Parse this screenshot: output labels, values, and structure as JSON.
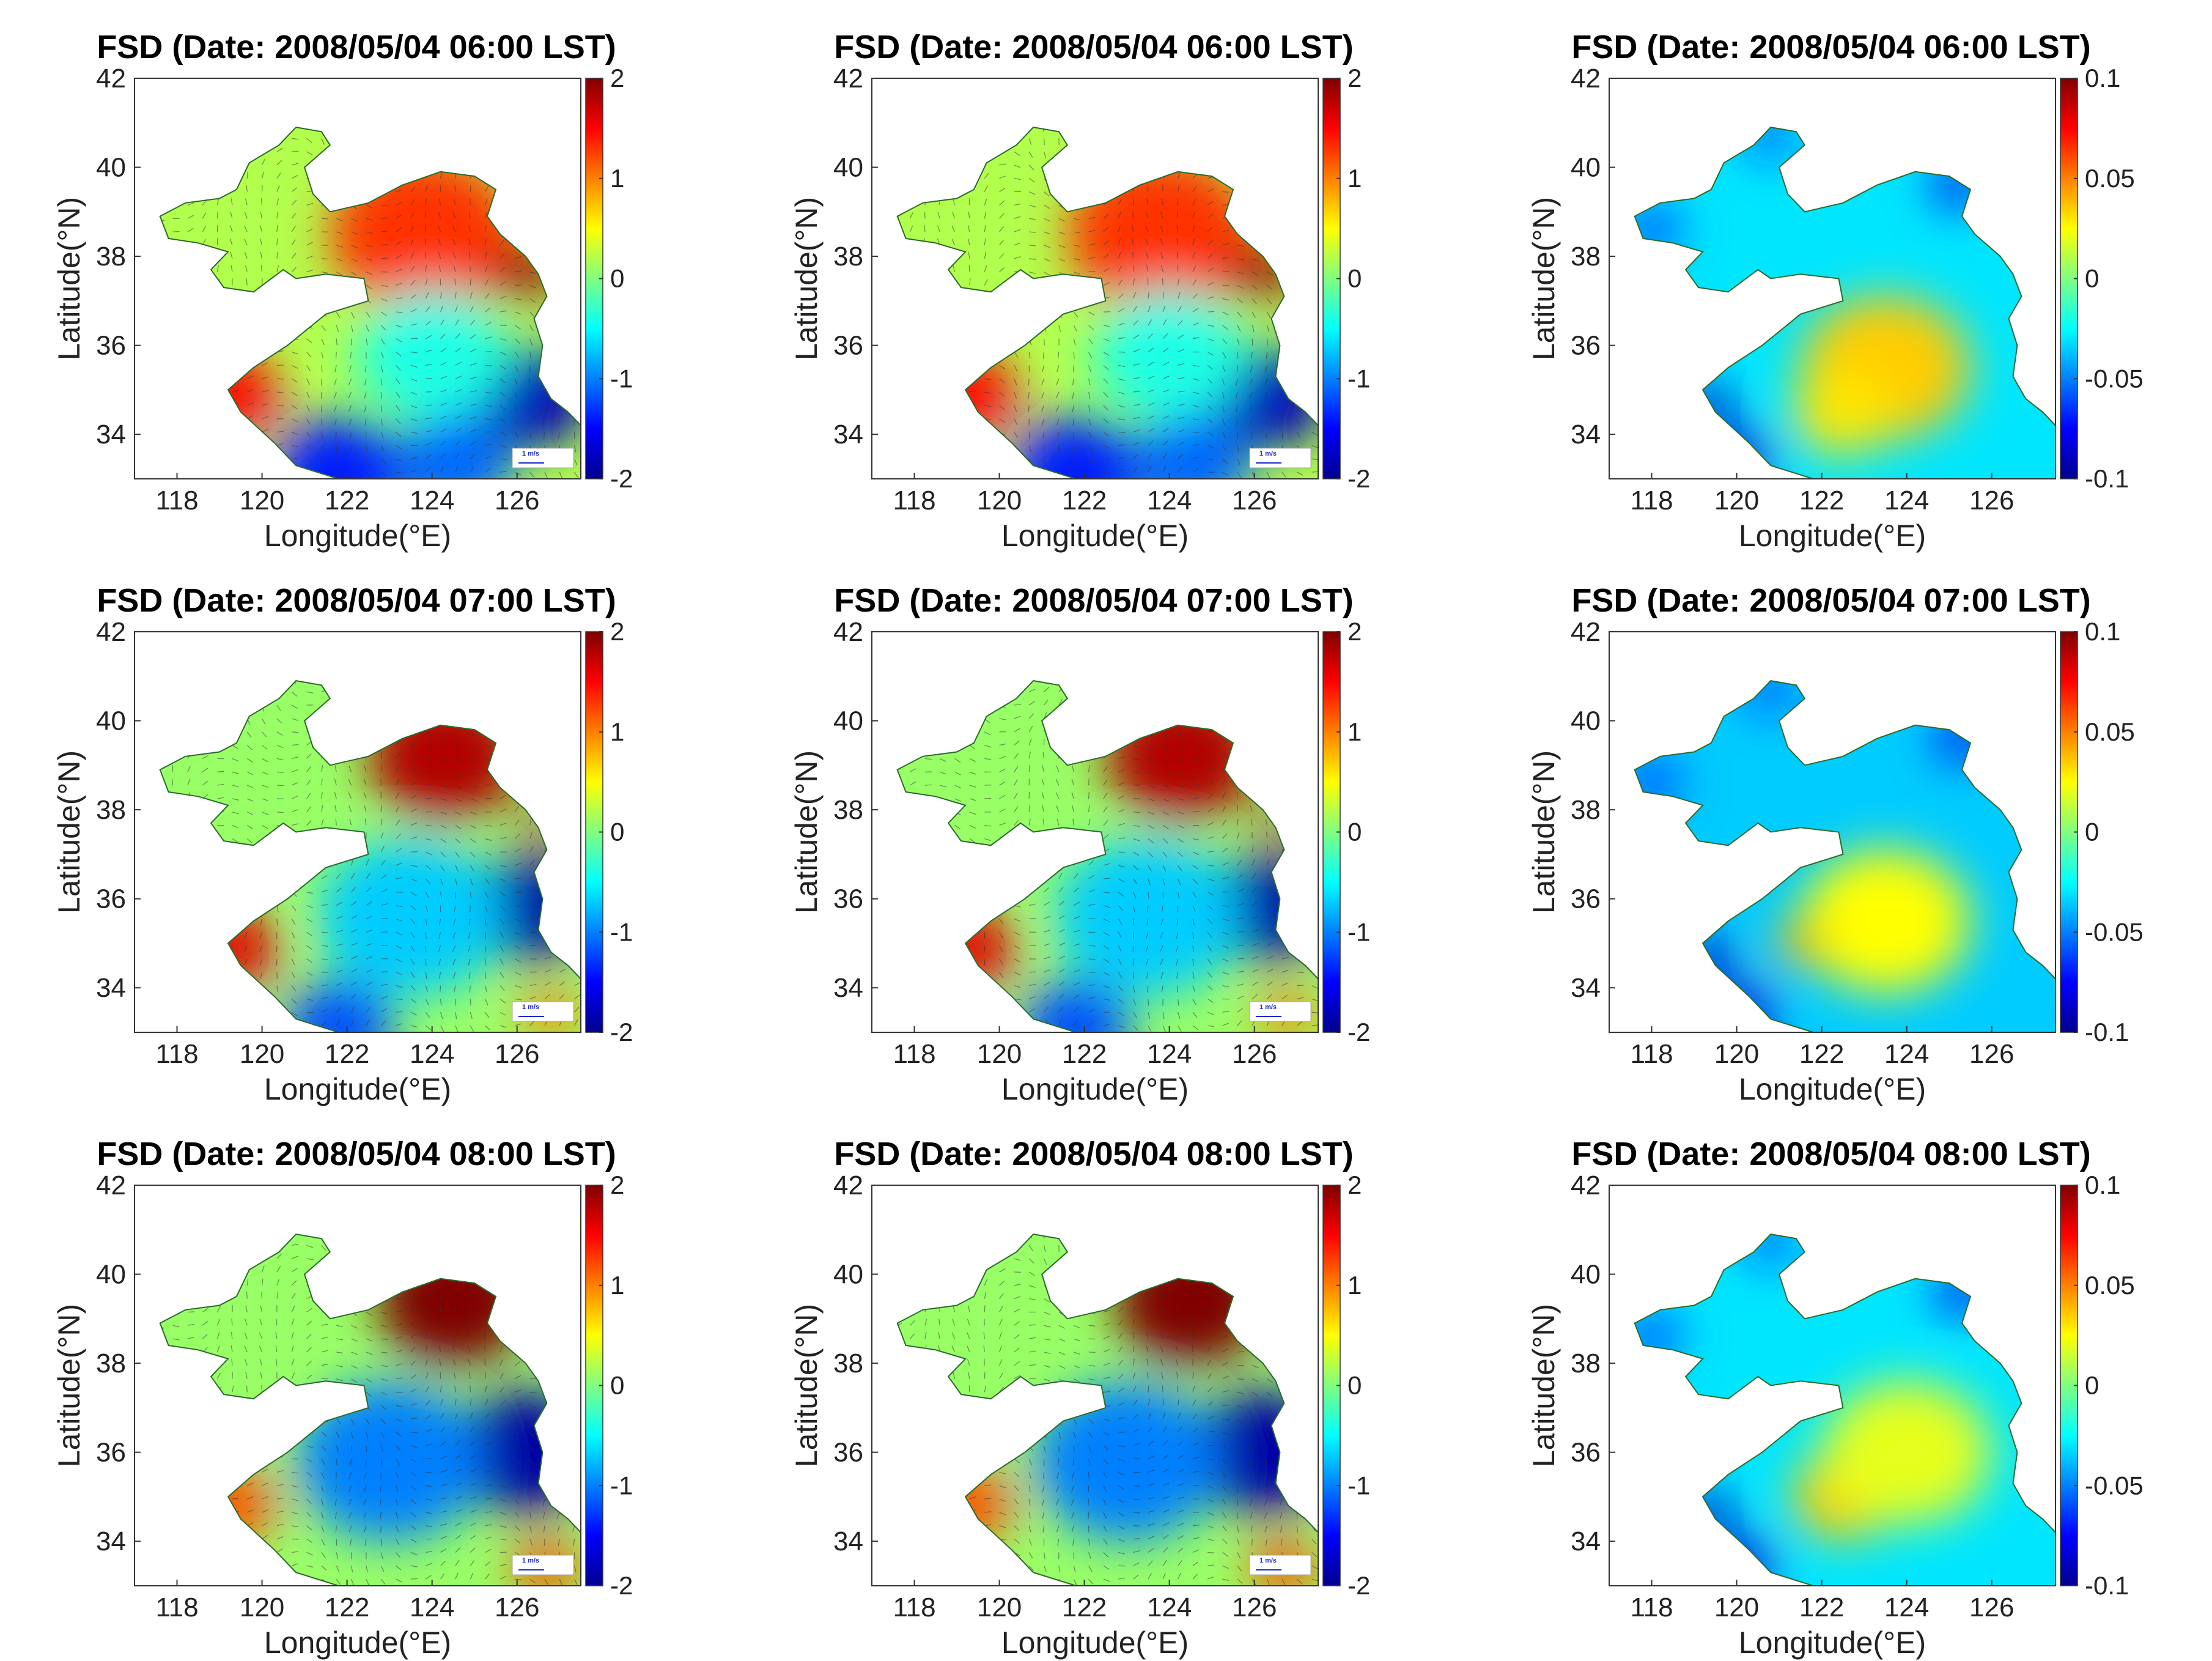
{
  "figure": {
    "grid_rows": 3,
    "grid_cols": 3
  },
  "colormap": [
    "#00008f",
    "#0000ff",
    "#0080ff",
    "#00ffff",
    "#80ff80",
    "#ffff00",
    "#ff8000",
    "#ff0000",
    "#800000"
  ],
  "chart_data": [
    {
      "type": "heatmap",
      "title": "FSD (Date: 2008/05/04 06:00 LST)",
      "xlabel": "Longitude(°E)",
      "ylabel": "Latitude(°N)",
      "xlim": [
        117,
        127.5
      ],
      "ylim": [
        33,
        42
      ],
      "x_ticks": [
        "118",
        "120",
        "122",
        "124",
        "126"
      ],
      "y_ticks": [
        "34",
        "36",
        "38",
        "40",
        "42"
      ],
      "colorbar": {
        "range": [
          -2,
          2
        ],
        "ticks": [
          "2",
          "1",
          "0",
          "-1",
          "-2"
        ]
      },
      "vector_scale": "1 m/s",
      "field": [
        {
          "lon": 123.8,
          "lat": 38.5,
          "value": 1.3,
          "radius": 2.2
        },
        {
          "lon": 126.2,
          "lat": 37.6,
          "value": 1.9,
          "radius": 0.8
        },
        {
          "lon": 119.2,
          "lat": 34.9,
          "value": 1.5,
          "radius": 1.2
        },
        {
          "lon": 126.3,
          "lat": 34.8,
          "value": -1.8,
          "radius": 1.4
        },
        {
          "lon": 121.8,
          "lat": 33.1,
          "value": -1.4,
          "radius": 1.6
        },
        {
          "lon": 124.5,
          "lat": 33.3,
          "value": -1.1,
          "radius": 1.4
        },
        {
          "lon": 124,
          "lat": 35.8,
          "value": -0.4,
          "radius": 1.8
        }
      ],
      "base_value": 0.2
    },
    {
      "type": "heatmap",
      "title": "FSD (Date: 2008/05/04 06:00 LST)",
      "xlabel": "Longitude(°E)",
      "ylabel": "Latitude(°N)",
      "xlim": [
        117,
        127.5
      ],
      "ylim": [
        33,
        42
      ],
      "x_ticks": [
        "118",
        "120",
        "122",
        "124",
        "126"
      ],
      "y_ticks": [
        "34",
        "36",
        "38",
        "40",
        "42"
      ],
      "colorbar": {
        "range": [
          -2,
          2
        ],
        "ticks": [
          "2",
          "1",
          "0",
          "-1",
          "-2"
        ]
      },
      "vector_scale": "1 m/s",
      "field": [
        {
          "lon": 123.8,
          "lat": 38.5,
          "value": 1.3,
          "radius": 2.2
        },
        {
          "lon": 126.2,
          "lat": 37.6,
          "value": 1.9,
          "radius": 0.8
        },
        {
          "lon": 119.2,
          "lat": 34.9,
          "value": 1.5,
          "radius": 1.2
        },
        {
          "lon": 126.3,
          "lat": 34.8,
          "value": -1.8,
          "radius": 1.4
        },
        {
          "lon": 121.8,
          "lat": 33.1,
          "value": -1.4,
          "radius": 1.6
        },
        {
          "lon": 124.5,
          "lat": 33.3,
          "value": -1.1,
          "radius": 1.4
        },
        {
          "lon": 124,
          "lat": 35.8,
          "value": -0.4,
          "radius": 1.8
        }
      ],
      "base_value": 0.2
    },
    {
      "type": "heatmap",
      "title": "FSD (Date: 2008/05/04 06:00 LST)",
      "xlabel": "Longitude(°E)",
      "ylabel": "Latitude(°N)",
      "xlim": [
        117,
        127.5
      ],
      "ylim": [
        33,
        42
      ],
      "x_ticks": [
        "118",
        "120",
        "122",
        "124",
        "126"
      ],
      "y_ticks": [
        "34",
        "36",
        "38",
        "40",
        "42"
      ],
      "colorbar": {
        "range": [
          -0.1,
          0.1
        ],
        "ticks": [
          "0.1",
          "0.05",
          "0",
          "-0.05",
          "-0.1"
        ]
      },
      "vector_scale": "",
      "field": [
        {
          "lon": 123.5,
          "lat": 35.5,
          "value": 0.035,
          "radius": 2.0
        },
        {
          "lon": 122.5,
          "lat": 34.5,
          "value": 0.03,
          "radius": 1.2
        },
        {
          "lon": 119.3,
          "lat": 34.6,
          "value": -0.09,
          "radius": 0.6
        },
        {
          "lon": 125.2,
          "lat": 39.6,
          "value": -0.08,
          "radius": 0.6
        },
        {
          "lon": 118,
          "lat": 38.6,
          "value": -0.06,
          "radius": 0.7
        },
        {
          "lon": 120.8,
          "lat": 40.7,
          "value": -0.07,
          "radius": 0.5
        },
        {
          "lon": 120.2,
          "lat": 33.5,
          "value": -0.085,
          "radius": 0.7
        }
      ],
      "base_value": -0.03
    },
    {
      "type": "heatmap",
      "title": "FSD (Date: 2008/05/04 07:00 LST)",
      "xlabel": "Longitude(°E)",
      "ylabel": "Latitude(°N)",
      "xlim": [
        117,
        127.5
      ],
      "ylim": [
        33,
        42
      ],
      "x_ticks": [
        "118",
        "120",
        "122",
        "124",
        "126"
      ],
      "y_ticks": [
        "34",
        "36",
        "38",
        "40",
        "42"
      ],
      "colorbar": {
        "range": [
          -2,
          2
        ],
        "ticks": [
          "2",
          "1",
          "0",
          "-1",
          "-2"
        ]
      },
      "vector_scale": "1 m/s",
      "field": [
        {
          "lon": 124.3,
          "lat": 39.2,
          "value": 1.8,
          "radius": 1.8
        },
        {
          "lon": 126.5,
          "lat": 37.7,
          "value": 1.7,
          "radius": 0.4
        },
        {
          "lon": 119.3,
          "lat": 34.9,
          "value": 1.6,
          "radius": 1.1
        },
        {
          "lon": 126.3,
          "lat": 35.8,
          "value": -1.9,
          "radius": 1.5
        },
        {
          "lon": 123.5,
          "lat": 35.6,
          "value": -0.7,
          "radius": 2.2
        },
        {
          "lon": 121.8,
          "lat": 33.1,
          "value": -1.2,
          "radius": 1.3
        },
        {
          "lon": 126.8,
          "lat": 33.4,
          "value": 1.0,
          "radius": 0.7
        }
      ],
      "base_value": 0.1
    },
    {
      "type": "heatmap",
      "title": "FSD (Date: 2008/05/04 07:00 LST)",
      "xlabel": "Longitude(°E)",
      "ylabel": "Latitude(°N)",
      "xlim": [
        117,
        127.5
      ],
      "ylim": [
        33,
        42
      ],
      "x_ticks": [
        "118",
        "120",
        "122",
        "124",
        "126"
      ],
      "y_ticks": [
        "34",
        "36",
        "38",
        "40",
        "42"
      ],
      "colorbar": {
        "range": [
          -2,
          2
        ],
        "ticks": [
          "2",
          "1",
          "0",
          "-1",
          "-2"
        ]
      },
      "vector_scale": "1 m/s",
      "field": [
        {
          "lon": 124.3,
          "lat": 39.2,
          "value": 1.8,
          "radius": 1.8
        },
        {
          "lon": 126.5,
          "lat": 37.7,
          "value": 1.7,
          "radius": 0.4
        },
        {
          "lon": 119.3,
          "lat": 34.9,
          "value": 1.6,
          "radius": 1.1
        },
        {
          "lon": 126.3,
          "lat": 35.8,
          "value": -1.9,
          "radius": 1.5
        },
        {
          "lon": 123.5,
          "lat": 35.6,
          "value": -0.7,
          "radius": 2.2
        },
        {
          "lon": 121.8,
          "lat": 33.1,
          "value": -1.2,
          "radius": 1.3
        },
        {
          "lon": 126.8,
          "lat": 33.4,
          "value": 1.0,
          "radius": 0.7
        }
      ],
      "base_value": 0.1
    },
    {
      "type": "heatmap",
      "title": "FSD (Date: 2008/05/04 07:00 LST)",
      "xlabel": "Longitude(°E)",
      "ylabel": "Latitude(°N)",
      "xlim": [
        117,
        127.5
      ],
      "ylim": [
        33,
        42
      ],
      "x_ticks": [
        "118",
        "120",
        "122",
        "124",
        "126"
      ],
      "y_ticks": [
        "34",
        "36",
        "38",
        "40",
        "42"
      ],
      "colorbar": {
        "range": [
          -0.1,
          0.1
        ],
        "ticks": [
          "0.1",
          "0.05",
          "0",
          "-0.05",
          "-0.1"
        ]
      },
      "vector_scale": "",
      "field": [
        {
          "lon": 123.5,
          "lat": 35.5,
          "value": 0.025,
          "radius": 2.0
        },
        {
          "lon": 121.5,
          "lat": 35,
          "value": 0.04,
          "radius": 0.6
        },
        {
          "lon": 119.3,
          "lat": 34.6,
          "value": -0.09,
          "radius": 0.6
        },
        {
          "lon": 125.3,
          "lat": 39.6,
          "value": -0.08,
          "radius": 0.6
        },
        {
          "lon": 118,
          "lat": 38.6,
          "value": -0.06,
          "radius": 0.7
        },
        {
          "lon": 120.8,
          "lat": 40.7,
          "value": -0.07,
          "radius": 0.5
        },
        {
          "lon": 120.2,
          "lat": 33.5,
          "value": -0.085,
          "radius": 0.7
        }
      ],
      "base_value": -0.035
    },
    {
      "type": "heatmap",
      "title": "FSD (Date: 2008/05/04 08:00 LST)",
      "xlabel": "Longitude(°E)",
      "ylabel": "Latitude(°N)",
      "xlim": [
        117,
        127.5
      ],
      "ylim": [
        33,
        42
      ],
      "x_ticks": [
        "118",
        "120",
        "122",
        "124",
        "126"
      ],
      "y_ticks": [
        "34",
        "36",
        "38",
        "40",
        "42"
      ],
      "colorbar": {
        "range": [
          -2,
          2
        ],
        "ticks": [
          "2",
          "1",
          "0",
          "-1",
          "-2"
        ]
      },
      "vector_scale": "1 m/s",
      "field": [
        {
          "lon": 124.5,
          "lat": 39.4,
          "value": 2.0,
          "radius": 1.8
        },
        {
          "lon": 119.2,
          "lat": 34.8,
          "value": 1.2,
          "radius": 1.1
        },
        {
          "lon": 126.2,
          "lat": 36,
          "value": -1.9,
          "radius": 1.7
        },
        {
          "lon": 123,
          "lat": 35.8,
          "value": -1.0,
          "radius": 2.2
        },
        {
          "lon": 126.7,
          "lat": 33.4,
          "value": 1.2,
          "radius": 0.8
        }
      ],
      "base_value": 0.1
    },
    {
      "type": "heatmap",
      "title": "FSD (Date: 2008/05/04 08:00 LST)",
      "xlabel": "Longitude(°E)",
      "ylabel": "Latitude(°N)",
      "xlim": [
        117,
        127.5
      ],
      "ylim": [
        33,
        42
      ],
      "x_ticks": [
        "118",
        "120",
        "122",
        "124",
        "126"
      ],
      "y_ticks": [
        "34",
        "36",
        "38",
        "40",
        "42"
      ],
      "colorbar": {
        "range": [
          -2,
          2
        ],
        "ticks": [
          "2",
          "1",
          "0",
          "-1",
          "-2"
        ]
      },
      "vector_scale": "1 m/s",
      "field": [
        {
          "lon": 124.5,
          "lat": 39.4,
          "value": 2.0,
          "radius": 1.8
        },
        {
          "lon": 119.2,
          "lat": 34.8,
          "value": 1.2,
          "radius": 1.1
        },
        {
          "lon": 126.2,
          "lat": 36,
          "value": -1.9,
          "radius": 1.7
        },
        {
          "lon": 123,
          "lat": 35.8,
          "value": -1.0,
          "radius": 2.2
        },
        {
          "lon": 126.7,
          "lat": 33.4,
          "value": 1.2,
          "radius": 0.8
        }
      ],
      "base_value": 0.1
    },
    {
      "type": "heatmap",
      "title": "FSD (Date: 2008/05/04 08:00 LST)",
      "xlabel": "Longitude(°E)",
      "ylabel": "Latitude(°N)",
      "xlim": [
        117,
        127.5
      ],
      "ylim": [
        33,
        42
      ],
      "x_ticks": [
        "118",
        "120",
        "122",
        "124",
        "126"
      ],
      "y_ticks": [
        "34",
        "36",
        "38",
        "40",
        "42"
      ],
      "colorbar": {
        "range": [
          -0.1,
          0.1
        ],
        "ticks": [
          "0.1",
          "0.05",
          "0",
          "-0.05",
          "-0.1"
        ]
      },
      "vector_scale": "",
      "field": [
        {
          "lon": 122.5,
          "lat": 35,
          "value": 0.035,
          "radius": 1.2
        },
        {
          "lon": 124,
          "lat": 36,
          "value": 0.02,
          "radius": 2.0
        },
        {
          "lon": 119.3,
          "lat": 34.6,
          "value": -0.09,
          "radius": 0.6
        },
        {
          "lon": 125.3,
          "lat": 39.6,
          "value": -0.08,
          "radius": 0.6
        },
        {
          "lon": 118,
          "lat": 38.6,
          "value": -0.06,
          "radius": 0.7
        },
        {
          "lon": 120.8,
          "lat": 40.7,
          "value": -0.07,
          "radius": 0.5
        },
        {
          "lon": 120.2,
          "lat": 33.5,
          "value": -0.085,
          "radius": 0.7
        }
      ],
      "base_value": -0.03
    }
  ]
}
